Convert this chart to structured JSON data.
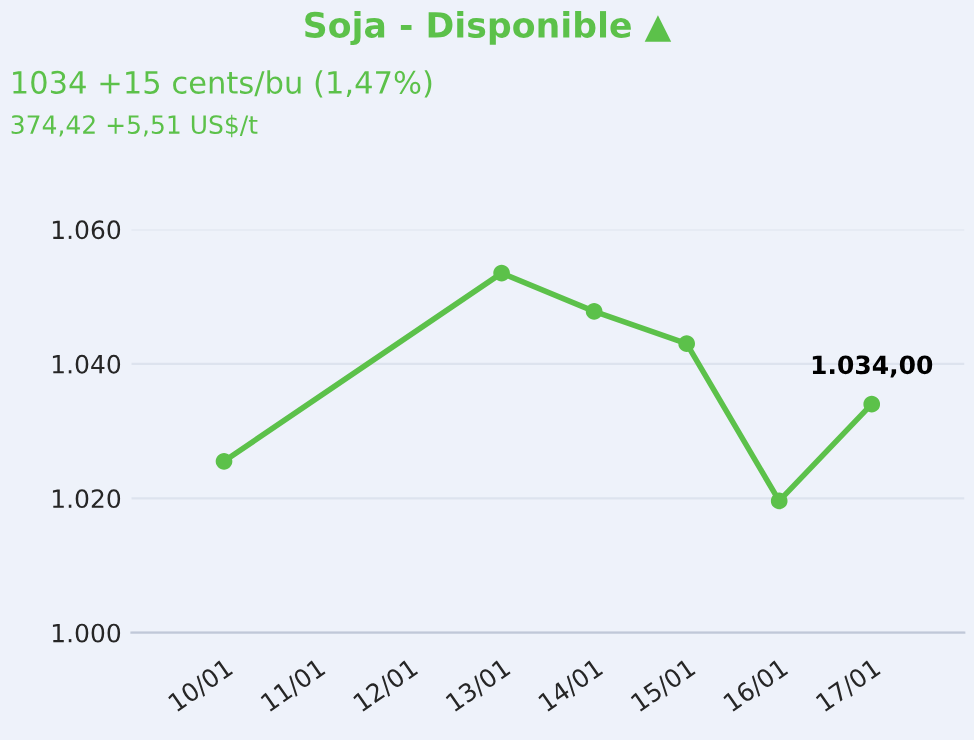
{
  "chart_data": {
    "type": "line",
    "title": "Soja - Disponible ▲",
    "subtitle": "1034 +15 cents/bu (1,47%)",
    "annotations": [
      "374,42 +5,51 US$/t"
    ],
    "x": [
      "--01-10",
      "--01-13",
      "--01-14",
      "--01-15",
      "--01-16",
      "--01-17"
    ],
    "series": [
      {
        "color": "#5cc14a",
        "values": [
          1025.5,
          1053.5,
          1047.8,
          1043,
          1019.6,
          1034
        ],
        "value_labels": [
          null,
          null,
          null,
          null,
          null,
          "1.034,00"
        ]
      }
    ],
    "xlim": [
      "--01-09",
      "--01-18"
    ],
    "xticks": [
      {
        "value": "--01-10",
        "label": "10/01"
      },
      {
        "value": "--01-11",
        "label": "11/01"
      },
      {
        "value": "--01-12",
        "label": "12/01"
      },
      {
        "value": "--01-13",
        "label": "13/01"
      },
      {
        "value": "--01-14",
        "label": "14/01"
      },
      {
        "value": "--01-15",
        "label": "15/01"
      },
      {
        "value": "--01-16",
        "label": "16/01"
      },
      {
        "value": "--01-17",
        "label": "17/01"
      }
    ],
    "ylim": [
      1000,
      1060
    ],
    "yticks": [
      {
        "value": 1000,
        "label": "1.000"
      },
      {
        "value": 1020,
        "label": "1.020"
      },
      {
        "value": 1040,
        "label": "1.040"
      },
      {
        "value": 1060,
        "label": "1.060"
      }
    ],
    "grid": "y",
    "marker": "circle",
    "line_style": "solid",
    "legend": false
  }
}
